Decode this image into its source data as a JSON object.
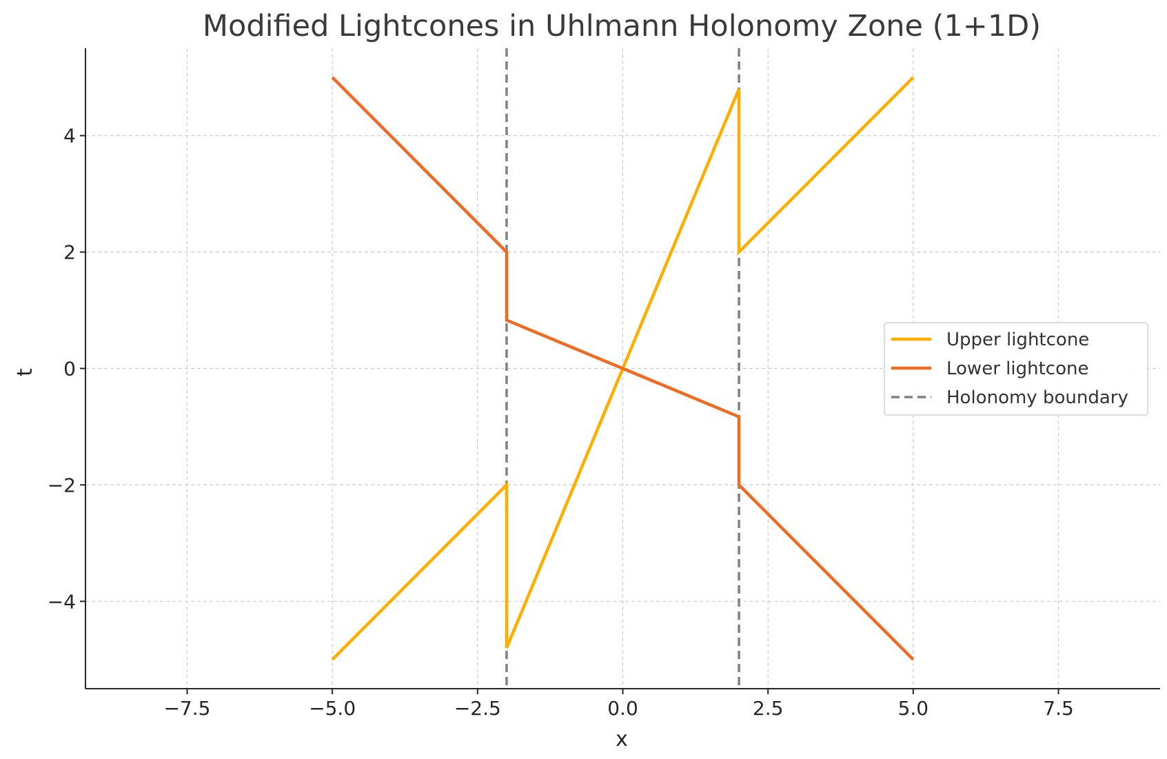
{
  "chart_data": {
    "type": "line",
    "title": "Modified Lightcones in Uhlmann Holonomy Zone (1+1D)",
    "xlabel": "x",
    "ylabel": "t",
    "xlim": [
      -9.25,
      9.25
    ],
    "ylim": [
      -5.5,
      5.5
    ],
    "xticks": [
      -7.5,
      -5.0,
      -2.5,
      0.0,
      2.5,
      5.0,
      7.5
    ],
    "xtick_labels": [
      "−7.5",
      "−5.0",
      "−2.5",
      "0.0",
      "2.5",
      "5.0",
      "7.5"
    ],
    "yticks": [
      -4,
      -2,
      0,
      2,
      4
    ],
    "ytick_labels": [
      "−4",
      "−2",
      "0",
      "2",
      "4"
    ],
    "grid": true,
    "legend_position": "center-right",
    "series": [
      {
        "name": "Upper lightcone",
        "color": "#FFAE00",
        "style": "solid",
        "x": [
          -5,
          -2,
          -2,
          0,
          2,
          2,
          5
        ],
        "y": [
          -5,
          -2,
          -4.8,
          0,
          4.8,
          2,
          5
        ]
      },
      {
        "name": "Lower lightcone",
        "color": "#F06A22",
        "style": "solid",
        "x": [
          -5,
          -2,
          -2,
          0,
          2,
          2,
          5
        ],
        "y": [
          5,
          2,
          0.83,
          0,
          -0.83,
          -2,
          -5
        ]
      },
      {
        "name": "Holonomy boundary",
        "color": "#808080",
        "style": "dashed",
        "vlines": [
          -2,
          2
        ]
      }
    ]
  }
}
